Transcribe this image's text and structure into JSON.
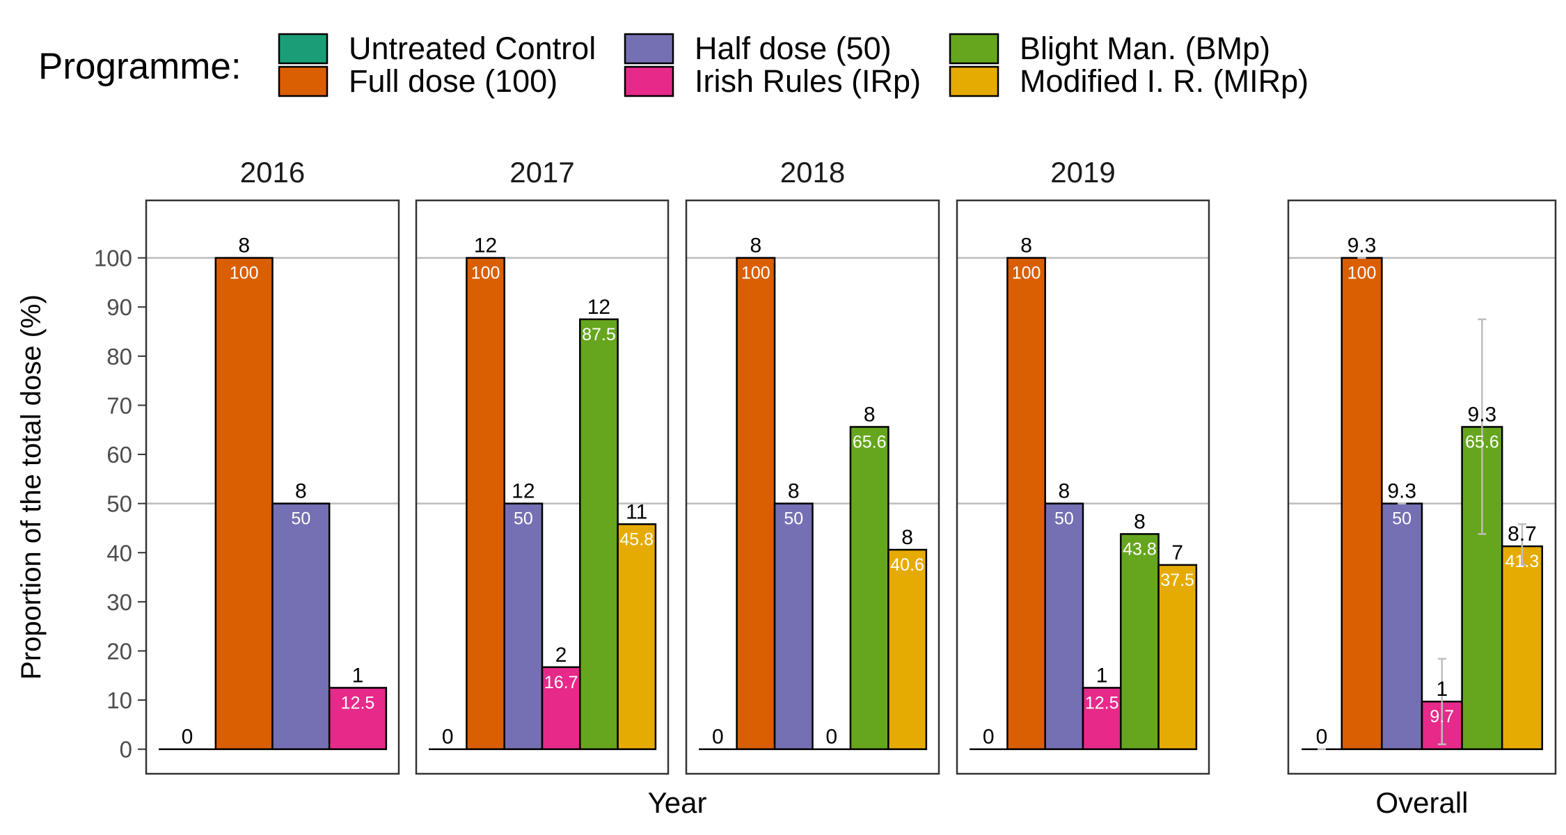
{
  "legend": {
    "title": "Programme:",
    "items": [
      {
        "label": "Untreated Control",
        "color": "#1b9e77"
      },
      {
        "label": "Full dose (100)",
        "color": "#d95f02"
      },
      {
        "label": "Half dose (50)",
        "color": "#7570b3"
      },
      {
        "label": "Irish Rules (IRp)",
        "color": "#e7298a"
      },
      {
        "label": "Blight Man. (BMp)",
        "color": "#66a61e"
      },
      {
        "label": "Modified I. R. (MIRp)",
        "color": "#e6ab02"
      }
    ]
  },
  "chart_data": {
    "type": "bar",
    "ylabel": "Proportion of the total dose (%)",
    "ylim": [
      0,
      110
    ],
    "yticks": [
      "0",
      "10",
      "20",
      "30",
      "40",
      "50",
      "60",
      "70",
      "80",
      "90",
      "100"
    ],
    "reference_lines": [
      50,
      100
    ],
    "xlabel_left": "Year",
    "xlabel_right": "Overall",
    "panels": [
      {
        "title": "2016",
        "bars": [
          {
            "series": "Untreated Control",
            "value": 0,
            "top_label": "0",
            "inner_label": ""
          },
          {
            "series": "Full dose (100)",
            "value": 100,
            "top_label": "8",
            "inner_label": "100"
          },
          {
            "series": "Half dose (50)",
            "value": 50,
            "top_label": "8",
            "inner_label": "50"
          },
          {
            "series": "Irish Rules (IRp)",
            "value": 12.5,
            "top_label": "1",
            "inner_label": "12.5"
          }
        ]
      },
      {
        "title": "2017",
        "bars": [
          {
            "series": "Untreated Control",
            "value": 0,
            "top_label": "0",
            "inner_label": ""
          },
          {
            "series": "Full dose (100)",
            "value": 100,
            "top_label": "12",
            "inner_label": "100"
          },
          {
            "series": "Half dose (50)",
            "value": 50,
            "top_label": "12",
            "inner_label": "50"
          },
          {
            "series": "Irish Rules (IRp)",
            "value": 16.7,
            "top_label": "2",
            "inner_label": "16.7"
          },
          {
            "series": "Blight Man. (BMp)",
            "value": 87.5,
            "top_label": "12",
            "inner_label": "87.5"
          },
          {
            "series": "Modified I. R. (MIRp)",
            "value": 45.8,
            "top_label": "11",
            "inner_label": "45.8"
          }
        ]
      },
      {
        "title": "2018",
        "bars": [
          {
            "series": "Untreated Control",
            "value": 0,
            "top_label": "0",
            "inner_label": ""
          },
          {
            "series": "Full dose (100)",
            "value": 100,
            "top_label": "8",
            "inner_label": "100"
          },
          {
            "series": "Half dose (50)",
            "value": 50,
            "top_label": "8",
            "inner_label": "50"
          },
          {
            "series": "Irish Rules (IRp)",
            "value": 0,
            "top_label": "0",
            "inner_label": ""
          },
          {
            "series": "Blight Man. (BMp)",
            "value": 65.6,
            "top_label": "8",
            "inner_label": "65.6"
          },
          {
            "series": "Modified I. R. (MIRp)",
            "value": 40.6,
            "top_label": "8",
            "inner_label": "40.6"
          }
        ]
      },
      {
        "title": "2019",
        "bars": [
          {
            "series": "Untreated Control",
            "value": 0,
            "top_label": "0",
            "inner_label": ""
          },
          {
            "series": "Full dose (100)",
            "value": 100,
            "top_label": "8",
            "inner_label": "100"
          },
          {
            "series": "Half dose (50)",
            "value": 50,
            "top_label": "8",
            "inner_label": "50"
          },
          {
            "series": "Irish Rules (IRp)",
            "value": 12.5,
            "top_label": "1",
            "inner_label": "12.5"
          },
          {
            "series": "Blight Man. (BMp)",
            "value": 43.8,
            "top_label": "8",
            "inner_label": "43.8"
          },
          {
            "series": "Modified I. R. (MIRp)",
            "value": 37.5,
            "top_label": "7",
            "inner_label": "37.5"
          }
        ]
      },
      {
        "title": "",
        "bars": [
          {
            "series": "Untreated Control",
            "value": 0,
            "top_label": "0",
            "inner_label": "",
            "err": [
              0,
              0
            ]
          },
          {
            "series": "Full dose (100)",
            "value": 100,
            "top_label": "9.3",
            "inner_label": "100",
            "err": [
              100,
              100
            ]
          },
          {
            "series": "Half dose (50)",
            "value": 50,
            "top_label": "9.3",
            "inner_label": "50",
            "err": [
              50,
              50
            ]
          },
          {
            "series": "Irish Rules (IRp)",
            "value": 9.7,
            "top_label": "1",
            "inner_label": "9.7",
            "err": [
              1,
              18.4
            ]
          },
          {
            "series": "Blight Man. (BMp)",
            "value": 65.6,
            "top_label": "9.3",
            "inner_label": "65.6",
            "err": [
              43.8,
              87.5
            ]
          },
          {
            "series": "Modified I. R. (MIRp)",
            "value": 41.3,
            "top_label": "8.7",
            "inner_label": "41.3",
            "err": [
              37.5,
              45.8
            ]
          }
        ]
      }
    ]
  }
}
